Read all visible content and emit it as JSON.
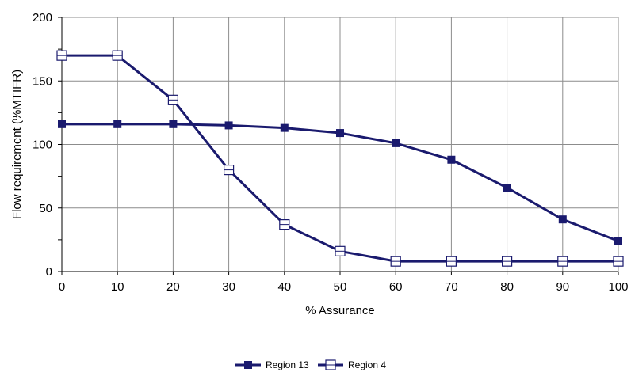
{
  "chart_data": {
    "type": "line",
    "title": "",
    "xlabel": "% Assurance",
    "ylabel": "Flow requirement (%MTIFR)",
    "x": [
      0,
      10,
      20,
      30,
      40,
      50,
      60,
      70,
      80,
      90,
      100
    ],
    "xlim": [
      0,
      100
    ],
    "ylim": [
      0,
      200
    ],
    "xticks": [
      "0",
      "10",
      "20",
      "30",
      "40",
      "50",
      "60",
      "70",
      "80",
      "90",
      "100"
    ],
    "yticks": [
      "0",
      "50",
      "100",
      "150",
      "200"
    ],
    "grid": true,
    "legend_position": "bottom",
    "series": [
      {
        "name": "Region 13",
        "marker": "filled-square",
        "color": "#1a1a6e",
        "values": [
          116,
          116,
          116,
          115,
          113,
          109,
          101,
          88,
          66,
          41,
          24
        ]
      },
      {
        "name": "Region 4",
        "marker": "hollow-square",
        "color": "#1a1a6e",
        "values": [
          170,
          170,
          135,
          80,
          37,
          16,
          8,
          8,
          8,
          8,
          8
        ]
      }
    ]
  }
}
